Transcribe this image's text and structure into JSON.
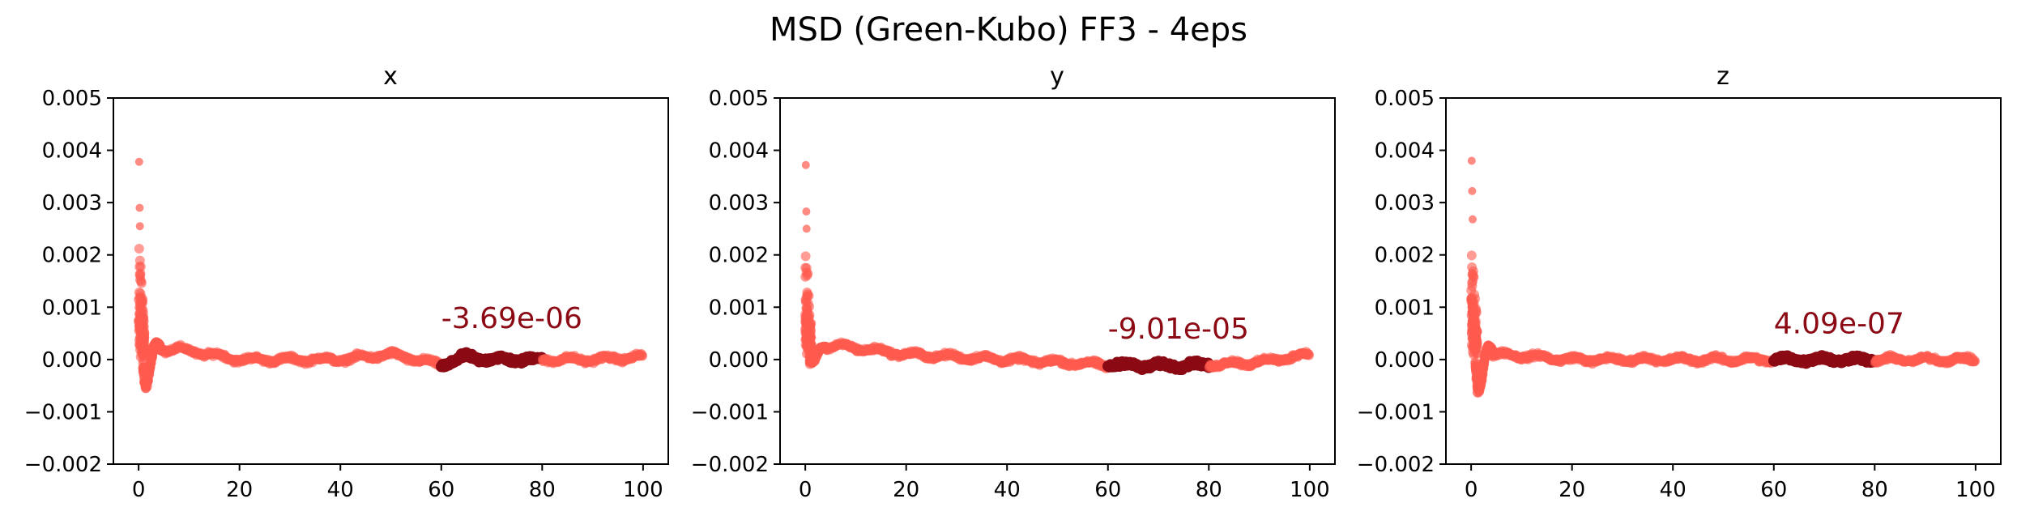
{
  "chart_data": {
    "title": "MSD (Green-Kubo) FF3 - 4eps",
    "colors": {
      "points": "#ff5a4f",
      "highlight": "#8b0a14",
      "text": "#8b0a14"
    },
    "shared": {
      "type": "scatter",
      "xlim": [
        -5,
        105
      ],
      "ylim": [
        -0.002,
        0.005
      ],
      "xticks": [
        0,
        20,
        40,
        60,
        80,
        100
      ],
      "yticks": [
        -0.002,
        -0.001,
        0.0,
        0.001,
        0.002,
        0.003,
        0.004,
        0.005
      ],
      "ytick_labels": [
        "−0.002",
        "−0.001",
        "0.000",
        "0.001",
        "0.002",
        "0.003",
        "0.004",
        "0.005"
      ],
      "highlight_range": [
        60,
        80
      ]
    },
    "panels": [
      {
        "title": "x",
        "annotation": "-3.69e-06",
        "annotation_pos": [
          60,
          0.0006
        ],
        "outliers": [
          [
            0.1,
            0.00378
          ],
          [
            0.2,
            0.0029
          ],
          [
            0.25,
            0.00255
          ]
        ],
        "spike_max": 0.0024,
        "dip_min": -0.00108,
        "baseline": [
          [
            8,
            0.0002
          ],
          [
            20,
            0.0
          ],
          [
            40,
            0.0
          ],
          [
            50,
            0.0001
          ],
          [
            60,
            -0.0001
          ],
          [
            65,
            5e-05
          ],
          [
            70,
            0.0
          ],
          [
            80,
            0.0
          ],
          [
            90,
            0.0
          ],
          [
            100,
            5e-05
          ]
        ]
      },
      {
        "title": "y",
        "annotation": "-9.01e-05",
        "annotation_pos": [
          60,
          0.0004
        ],
        "outliers": [
          [
            0.1,
            0.00372
          ],
          [
            0.2,
            0.00283
          ],
          [
            0.25,
            0.0025
          ]
        ],
        "spike_max": 0.0023,
        "dip_min": -0.0002,
        "baseline": [
          [
            8,
            0.00025
          ],
          [
            20,
            0.0001
          ],
          [
            40,
            0.0
          ],
          [
            60,
            -0.0001
          ],
          [
            70,
            -0.00012
          ],
          [
            80,
            -0.0001
          ],
          [
            90,
            -5e-05
          ],
          [
            100,
            0.0001
          ]
        ]
      },
      {
        "title": "z",
        "annotation": "4.09e-07",
        "annotation_pos": [
          60,
          0.0005
        ],
        "outliers": [
          [
            0.1,
            0.0038
          ],
          [
            0.2,
            0.00322
          ],
          [
            0.3,
            0.00268
          ]
        ],
        "spike_max": 0.0024,
        "dip_min": -0.0012,
        "baseline": [
          [
            6,
            0.0001
          ],
          [
            20,
            0.0
          ],
          [
            40,
            0.0
          ],
          [
            60,
            0.0
          ],
          [
            80,
            0.0
          ],
          [
            100,
            0.0
          ]
        ]
      }
    ]
  }
}
